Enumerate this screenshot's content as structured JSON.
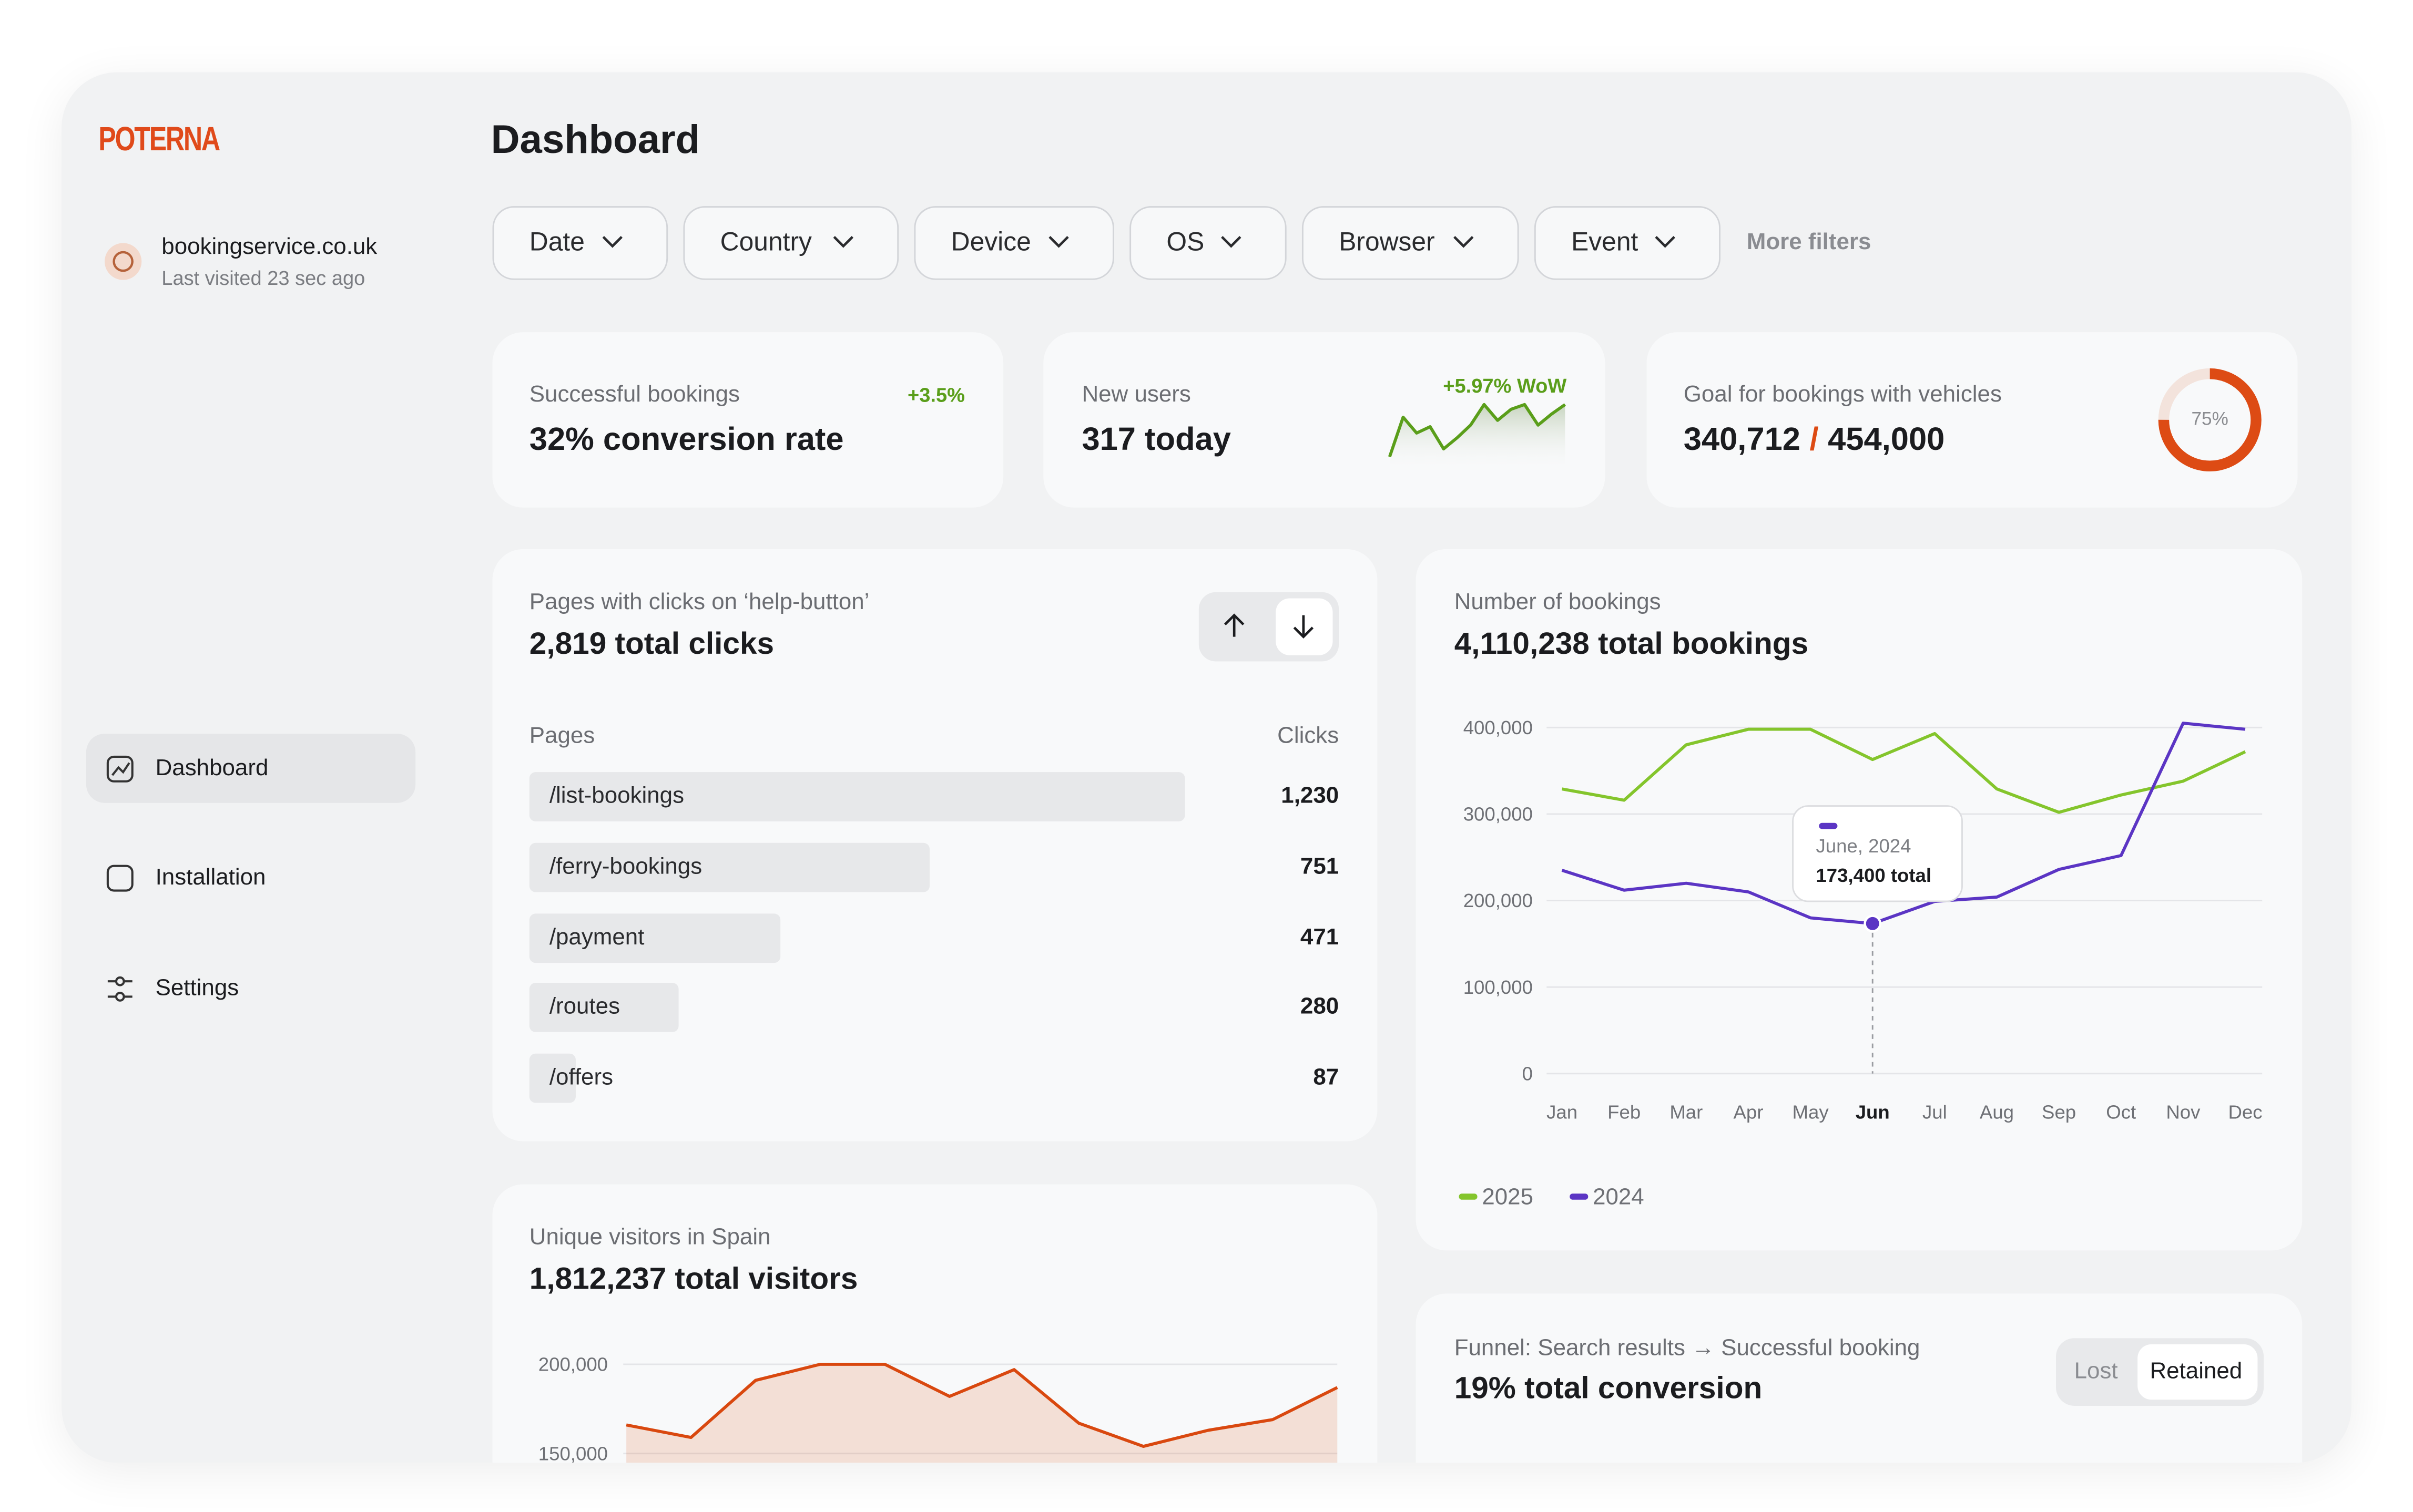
{
  "sidebar": {
    "logo": "POTERNA",
    "site": {
      "name": "bookingservice.co.uk",
      "last_visited": "Last visited 23 sec ago"
    },
    "nav": [
      "Dashboard",
      "Installation",
      "Settings"
    ],
    "active_nav": 0
  },
  "header": {
    "title": "Dashboard",
    "filters": [
      "Date",
      "Country",
      "Device",
      "OS",
      "Browser",
      "Event"
    ],
    "more_filters": "More filters"
  },
  "kpis": [
    {
      "label": "Successful bookings",
      "value": "32% conversion rate",
      "change": "+3.5%"
    },
    {
      "label": "New users",
      "value": "317 today",
      "change": "+5.97% WoW",
      "sparkline": [
        5,
        30,
        20,
        24,
        10,
        17,
        25,
        38,
        28,
        35,
        38,
        25,
        32,
        38
      ],
      "color": "#5a9e1a"
    },
    {
      "label": "Goal for bookings with vehicles",
      "current": "340,712",
      "separator": "/",
      "target": "454,000",
      "progress": {
        "value": 75,
        "label": "75%"
      },
      "color": "#dd4b14"
    }
  ],
  "pages_table": {
    "type": "bar",
    "title": "Pages with clicks on ‘help-button’",
    "total": "2,819 total clicks",
    "columns": [
      "Pages",
      "Clicks"
    ],
    "categories": [
      "/list-bookings",
      "/ferry-bookings",
      "/payment",
      "/routes",
      "/offers"
    ],
    "values": [
      1230,
      751,
      471,
      280,
      87
    ],
    "value_labels": [
      "1,230",
      "751",
      "471",
      "280",
      "87"
    ],
    "color": "#e7e8ea"
  },
  "bookings_chart": {
    "type": "line",
    "title": "Number of bookings",
    "total": "4,110,238 total bookings",
    "categories": [
      "Jan",
      "Feb",
      "Mar",
      "Apr",
      "May",
      "Jun",
      "Jul",
      "Aug",
      "Sep",
      "Oct",
      "Nov",
      "Dec"
    ],
    "series": [
      {
        "name": "2025",
        "color": "#84c52c",
        "values": [
          329000,
          316000,
          380000,
          398000,
          398000,
          363000,
          393000,
          329000,
          302000,
          322000,
          338000,
          372000
        ]
      },
      {
        "name": "2024",
        "color": "#5b35c4",
        "values": [
          235000,
          212000,
          220000,
          210000,
          180000,
          173400,
          199000,
          204000,
          236000,
          252000,
          405000,
          398000
        ]
      }
    ],
    "ylim": [
      0,
      400000
    ],
    "yticks": [
      0,
      {
        "value": 100000,
        "label": "100,000"
      },
      {
        "value": 200000,
        "label": "200,000"
      },
      {
        "value": 300000,
        "label": "300,000"
      },
      {
        "value": 400000,
        "label": "400,000"
      }
    ],
    "grid": true,
    "tooltip": {
      "series": 1,
      "index": 5,
      "title": "June, 2024",
      "text": "173,400 total"
    }
  },
  "visitors_chart": {
    "type": "area",
    "title": "Unique visitors in Spain",
    "total": "1,812,237 total visitors",
    "color": "#d9480f",
    "values": [
      166000,
      159000,
      191000,
      200000,
      200000,
      182000,
      197000,
      167000,
      154000,
      163000,
      169000,
      187000
    ],
    "ylim": [
      150000,
      200000
    ],
    "yticks": [
      {
        "value": 150000,
        "label": "150,000"
      },
      {
        "value": 200000,
        "label": "200,000"
      }
    ],
    "grid": true
  },
  "funnel": {
    "title": "Funnel: Search results → Successful booking",
    "total": "19% total conversion",
    "toggle": [
      "Lost",
      "Retained"
    ],
    "active_toggle": 1
  }
}
